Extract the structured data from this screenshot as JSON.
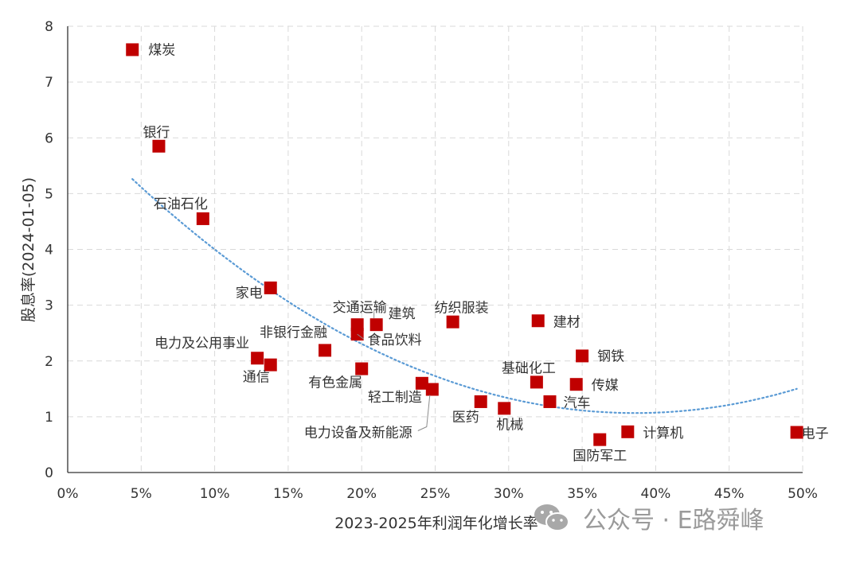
{
  "chart_data": {
    "type": "scatter",
    "xlabel": "2023-2025年利润年化增长率",
    "ylabel": "股息率(2024-01-05)",
    "xlim": [
      0,
      0.5
    ],
    "ylim": [
      0,
      8
    ],
    "x_ticks": [
      "0%",
      "5%",
      "10%",
      "15%",
      "20%",
      "25%",
      "30%",
      "35%",
      "40%",
      "45%",
      "50%"
    ],
    "y_ticks": [
      "0",
      "1",
      "2",
      "3",
      "4",
      "5",
      "6",
      "7",
      "8"
    ],
    "marker_color": "#c00000",
    "trend_color": "#5b9bd5",
    "trendline": {
      "type": "polynomial",
      "order": 2,
      "a": 35.87,
      "b": -27.69,
      "c": 6.41
    },
    "points": [
      {
        "name": "煤炭",
        "x": 0.044,
        "y": 7.58
      },
      {
        "name": "银行",
        "x": 0.062,
        "y": 5.85
      },
      {
        "name": "石油石化",
        "x": 0.092,
        "y": 4.55
      },
      {
        "name": "家电",
        "x": 0.138,
        "y": 3.31
      },
      {
        "name": "电力及公用事业",
        "x": 0.129,
        "y": 2.05
      },
      {
        "name": "通信",
        "x": 0.138,
        "y": 1.93
      },
      {
        "name": "非银行金融",
        "x": 0.175,
        "y": 2.19
      },
      {
        "name": "交通运输",
        "x": 0.197,
        "y": 2.65
      },
      {
        "name": "食品饮料",
        "x": 0.197,
        "y": 2.48
      },
      {
        "name": "建筑",
        "x": 0.21,
        "y": 2.65
      },
      {
        "name": "有色金属",
        "x": 0.2,
        "y": 1.86
      },
      {
        "name": "轻工制造",
        "x": 0.241,
        "y": 1.6
      },
      {
        "name": "电力设备及新能源",
        "x": 0.248,
        "y": 1.49
      },
      {
        "name": "纺织服装",
        "x": 0.262,
        "y": 2.7
      },
      {
        "name": "医药",
        "x": 0.281,
        "y": 1.27
      },
      {
        "name": "机械",
        "x": 0.297,
        "y": 1.15
      },
      {
        "name": "建材",
        "x": 0.32,
        "y": 2.72
      },
      {
        "name": "基础化工",
        "x": 0.319,
        "y": 1.62
      },
      {
        "name": "汽车",
        "x": 0.328,
        "y": 1.27
      },
      {
        "name": "传媒",
        "x": 0.346,
        "y": 1.58
      },
      {
        "name": "钢铁",
        "x": 0.35,
        "y": 2.09
      },
      {
        "name": "国防军工",
        "x": 0.362,
        "y": 0.59
      },
      {
        "name": "计算机",
        "x": 0.381,
        "y": 0.73
      },
      {
        "name": "电子",
        "x": 0.496,
        "y": 0.72
      }
    ]
  },
  "watermark": {
    "icon": "wechat-icon",
    "text": "公众号 · E路舜峰"
  }
}
